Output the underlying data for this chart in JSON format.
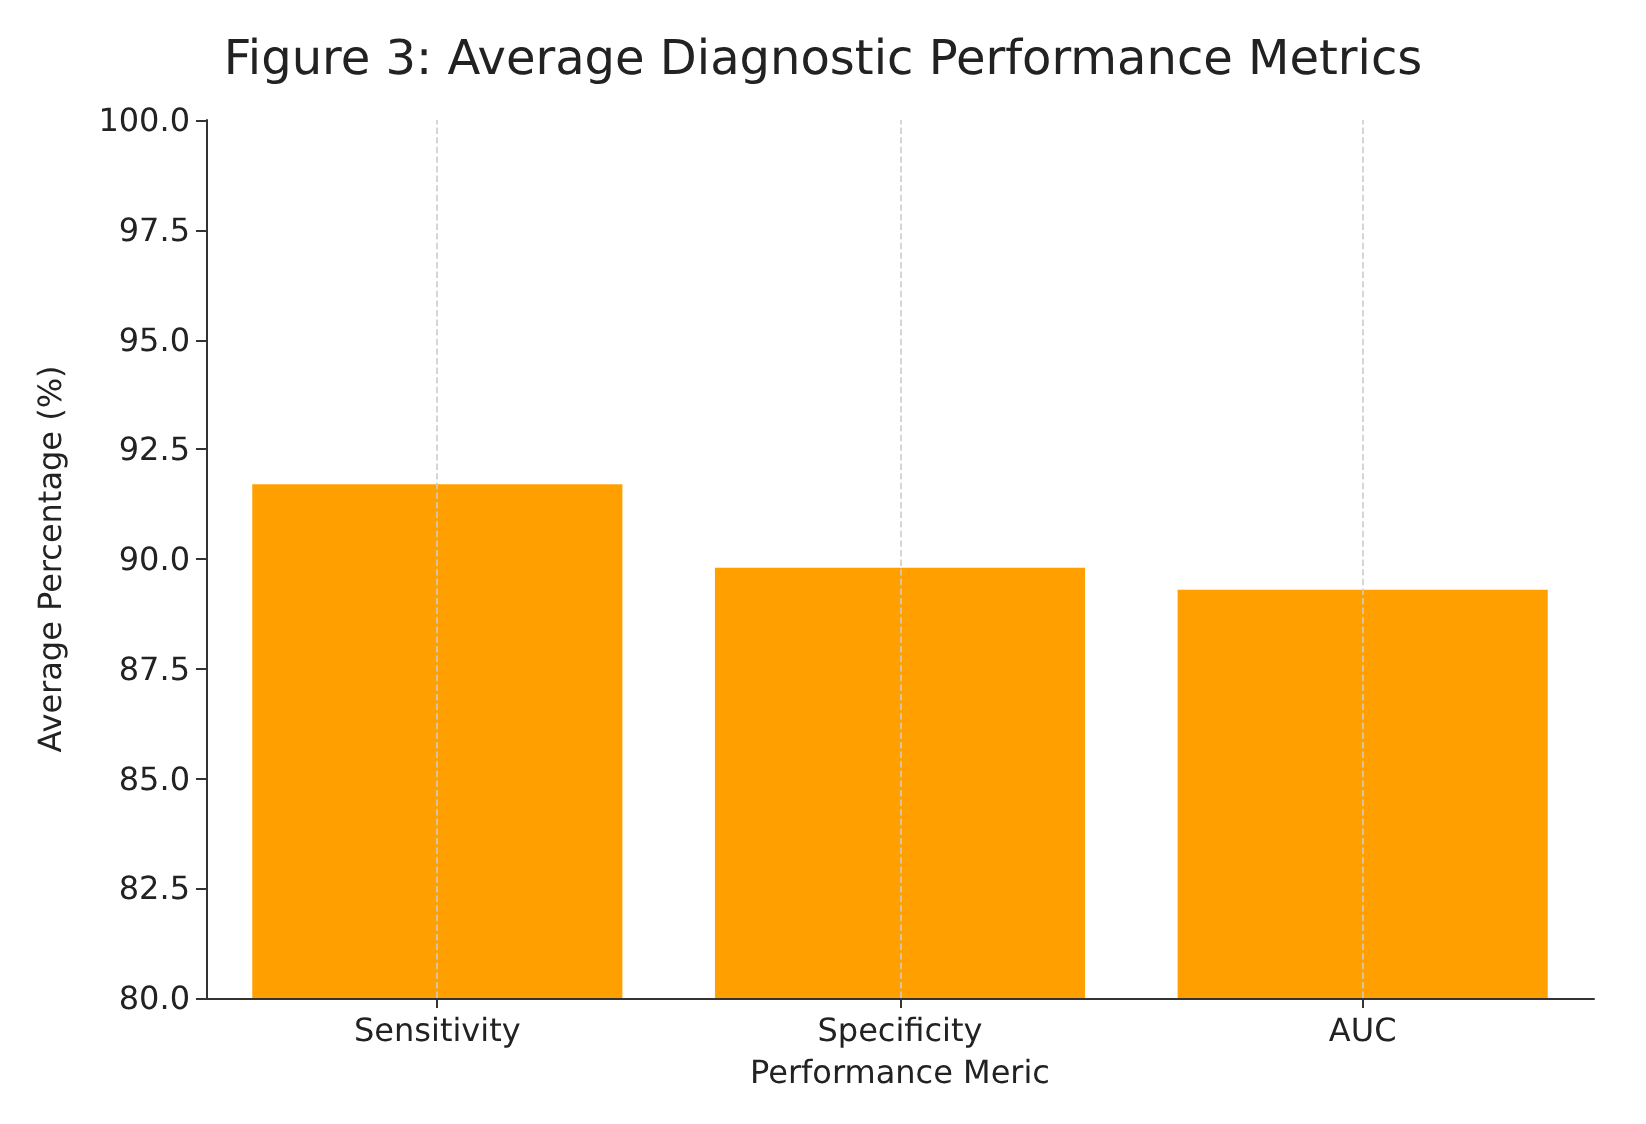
{
  "chart_data": {
    "type": "bar",
    "title": "Figure 3: Average Diagnostic Performance Metrics",
    "xlabel": "Performance Meric",
    "ylabel": "Average Percentage (%)",
    "categories": [
      "Sensitivity",
      "Specificity",
      "AUC"
    ],
    "values": [
      91.7,
      89.8,
      89.3
    ],
    "color": "#ffa000",
    "ylim": [
      80,
      100
    ],
    "yticks": [
      {
        "value": 80,
        "label": "80.0"
      },
      {
        "value": 82.5,
        "label": "82.5"
      },
      {
        "value": 85,
        "label": "85.0"
      },
      {
        "value": 87.5,
        "label": "87.5"
      },
      {
        "value": 90,
        "label": "90.0"
      },
      {
        "value": 92.5,
        "label": "92.5"
      },
      {
        "value": 95,
        "label": "95.0"
      },
      {
        "value": 97.5,
        "label": "97.5"
      },
      {
        "value": 100,
        "label": "100.0"
      }
    ],
    "grid": "x"
  }
}
